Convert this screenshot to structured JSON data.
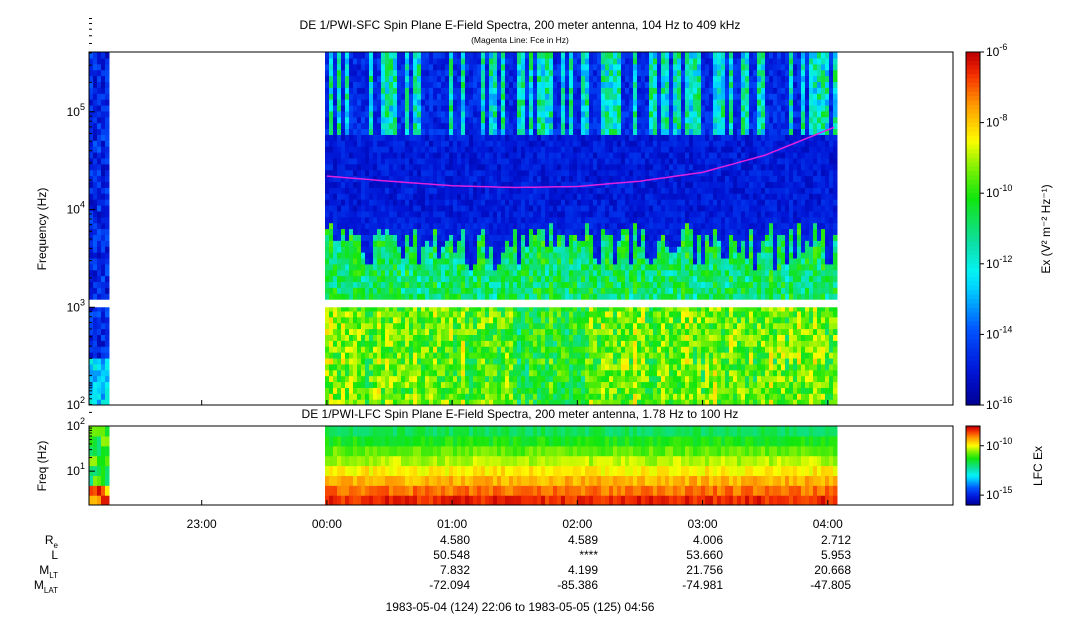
{
  "title_sfc": "DE 1/PWI-SFC  Spin Plane E-Field Spectra, 200 meter antenna, 104 Hz to 409 kHz",
  "subtitle_sfc": "(Magenta Line: Fce in Hz)",
  "title_lfc": "DE 1/PWI-LFC  Spin Plane E-Field Spectra, 200 meter antenna, 1.78 Hz to 100 Hz",
  "date_range": "1983-05-04 (124) 22:06 to 1983-05-05 (125) 04:56",
  "colors": {
    "fce_line": "#e020e0",
    "background": "#ffffff",
    "axis": "#000000"
  },
  "chart_data": [
    {
      "type": "heatmap",
      "title": "DE 1/PWI-SFC  Spin Plane E-Field Spectra, 200 meter antenna, 104 Hz to 409 kHz",
      "subtitle": "(Magenta Line: Fce in Hz)",
      "ylabel": "Frequency (Hz)",
      "yscale": "log",
      "ylim": [
        100,
        409000
      ],
      "y_ticks": [
        {
          "label": "10",
          "sup": "2",
          "value": 100
        },
        {
          "label": "10",
          "sup": "3",
          "value": 1000
        },
        {
          "label": "10",
          "sup": "4",
          "value": 10000
        },
        {
          "label": "10",
          "sup": "5",
          "value": 100000
        }
      ],
      "xlim_hours": [
        22.1,
        29.0
      ],
      "x_ticks": [
        "23:00",
        "00:00",
        "01:00",
        "02:00",
        "03:00",
        "04:00"
      ],
      "x_tick_hours": [
        23,
        24,
        25,
        26,
        27,
        28
      ],
      "data_gaps_hours": [
        [
          22.25,
          24.0
        ],
        [
          28.08,
          29.0
        ]
      ],
      "colorbar": {
        "label": "Ex (V² m⁻² Hz⁻¹)",
        "scale": "log",
        "range": [
          1e-16,
          1e-06
        ],
        "ticks": [
          {
            "label": "10",
            "sup": "-6",
            "exp": -6
          },
          {
            "label": "10",
            "sup": "-8",
            "exp": -8
          },
          {
            "label": "10",
            "sup": "-10",
            "exp": -10
          },
          {
            "label": "10",
            "sup": "-12",
            "exp": -12
          },
          {
            "label": "10",
            "sup": "-14",
            "exp": -14
          },
          {
            "label": "10",
            "sup": "-16",
            "exp": -16
          }
        ]
      },
      "fce_line": {
        "name": "Fce",
        "hours": [
          24.0,
          24.5,
          25.0,
          25.5,
          26.0,
          26.5,
          27.0,
          27.5,
          28.08
        ],
        "hz": [
          22000,
          19500,
          17500,
          16800,
          17200,
          19500,
          24000,
          36000,
          72000
        ]
      }
    },
    {
      "type": "heatmap",
      "title": "DE 1/PWI-LFC  Spin Plane E-Field Spectra, 200 meter antenna, 1.78 Hz to 100 Hz",
      "ylabel": "Freq (Hz)",
      "yscale": "log",
      "ylim": [
        1.78,
        100
      ],
      "y_ticks": [
        {
          "label": "10",
          "sup": "2",
          "value": 100
        },
        {
          "label": "10",
          "sup": "1",
          "value": 10
        }
      ],
      "colorbar": {
        "label": "LFC Ex",
        "scale": "log",
        "range": [
          1e-16,
          1e-08
        ],
        "ticks": [
          {
            "label": "10",
            "sup": "-10",
            "exp": -10
          },
          {
            "label": "10",
            "sup": "-15",
            "exp": -15
          }
        ]
      }
    }
  ],
  "ephemeris": {
    "rows": [
      {
        "label": "R",
        "sub": "e",
        "values": [
          "4.580",
          "4.589",
          "4.006",
          "2.712"
        ]
      },
      {
        "label": "L",
        "sub": "",
        "values": [
          "50.548",
          "****",
          "53.660",
          "5.953"
        ]
      },
      {
        "label": "M",
        "sub": "LT",
        "values": [
          "7.832",
          "4.199",
          "21.756",
          "20.668"
        ]
      },
      {
        "label": "M",
        "sub": "LAT",
        "values": [
          "-72.094",
          "-85.386",
          "-74.981",
          "-47.805"
        ]
      }
    ]
  }
}
